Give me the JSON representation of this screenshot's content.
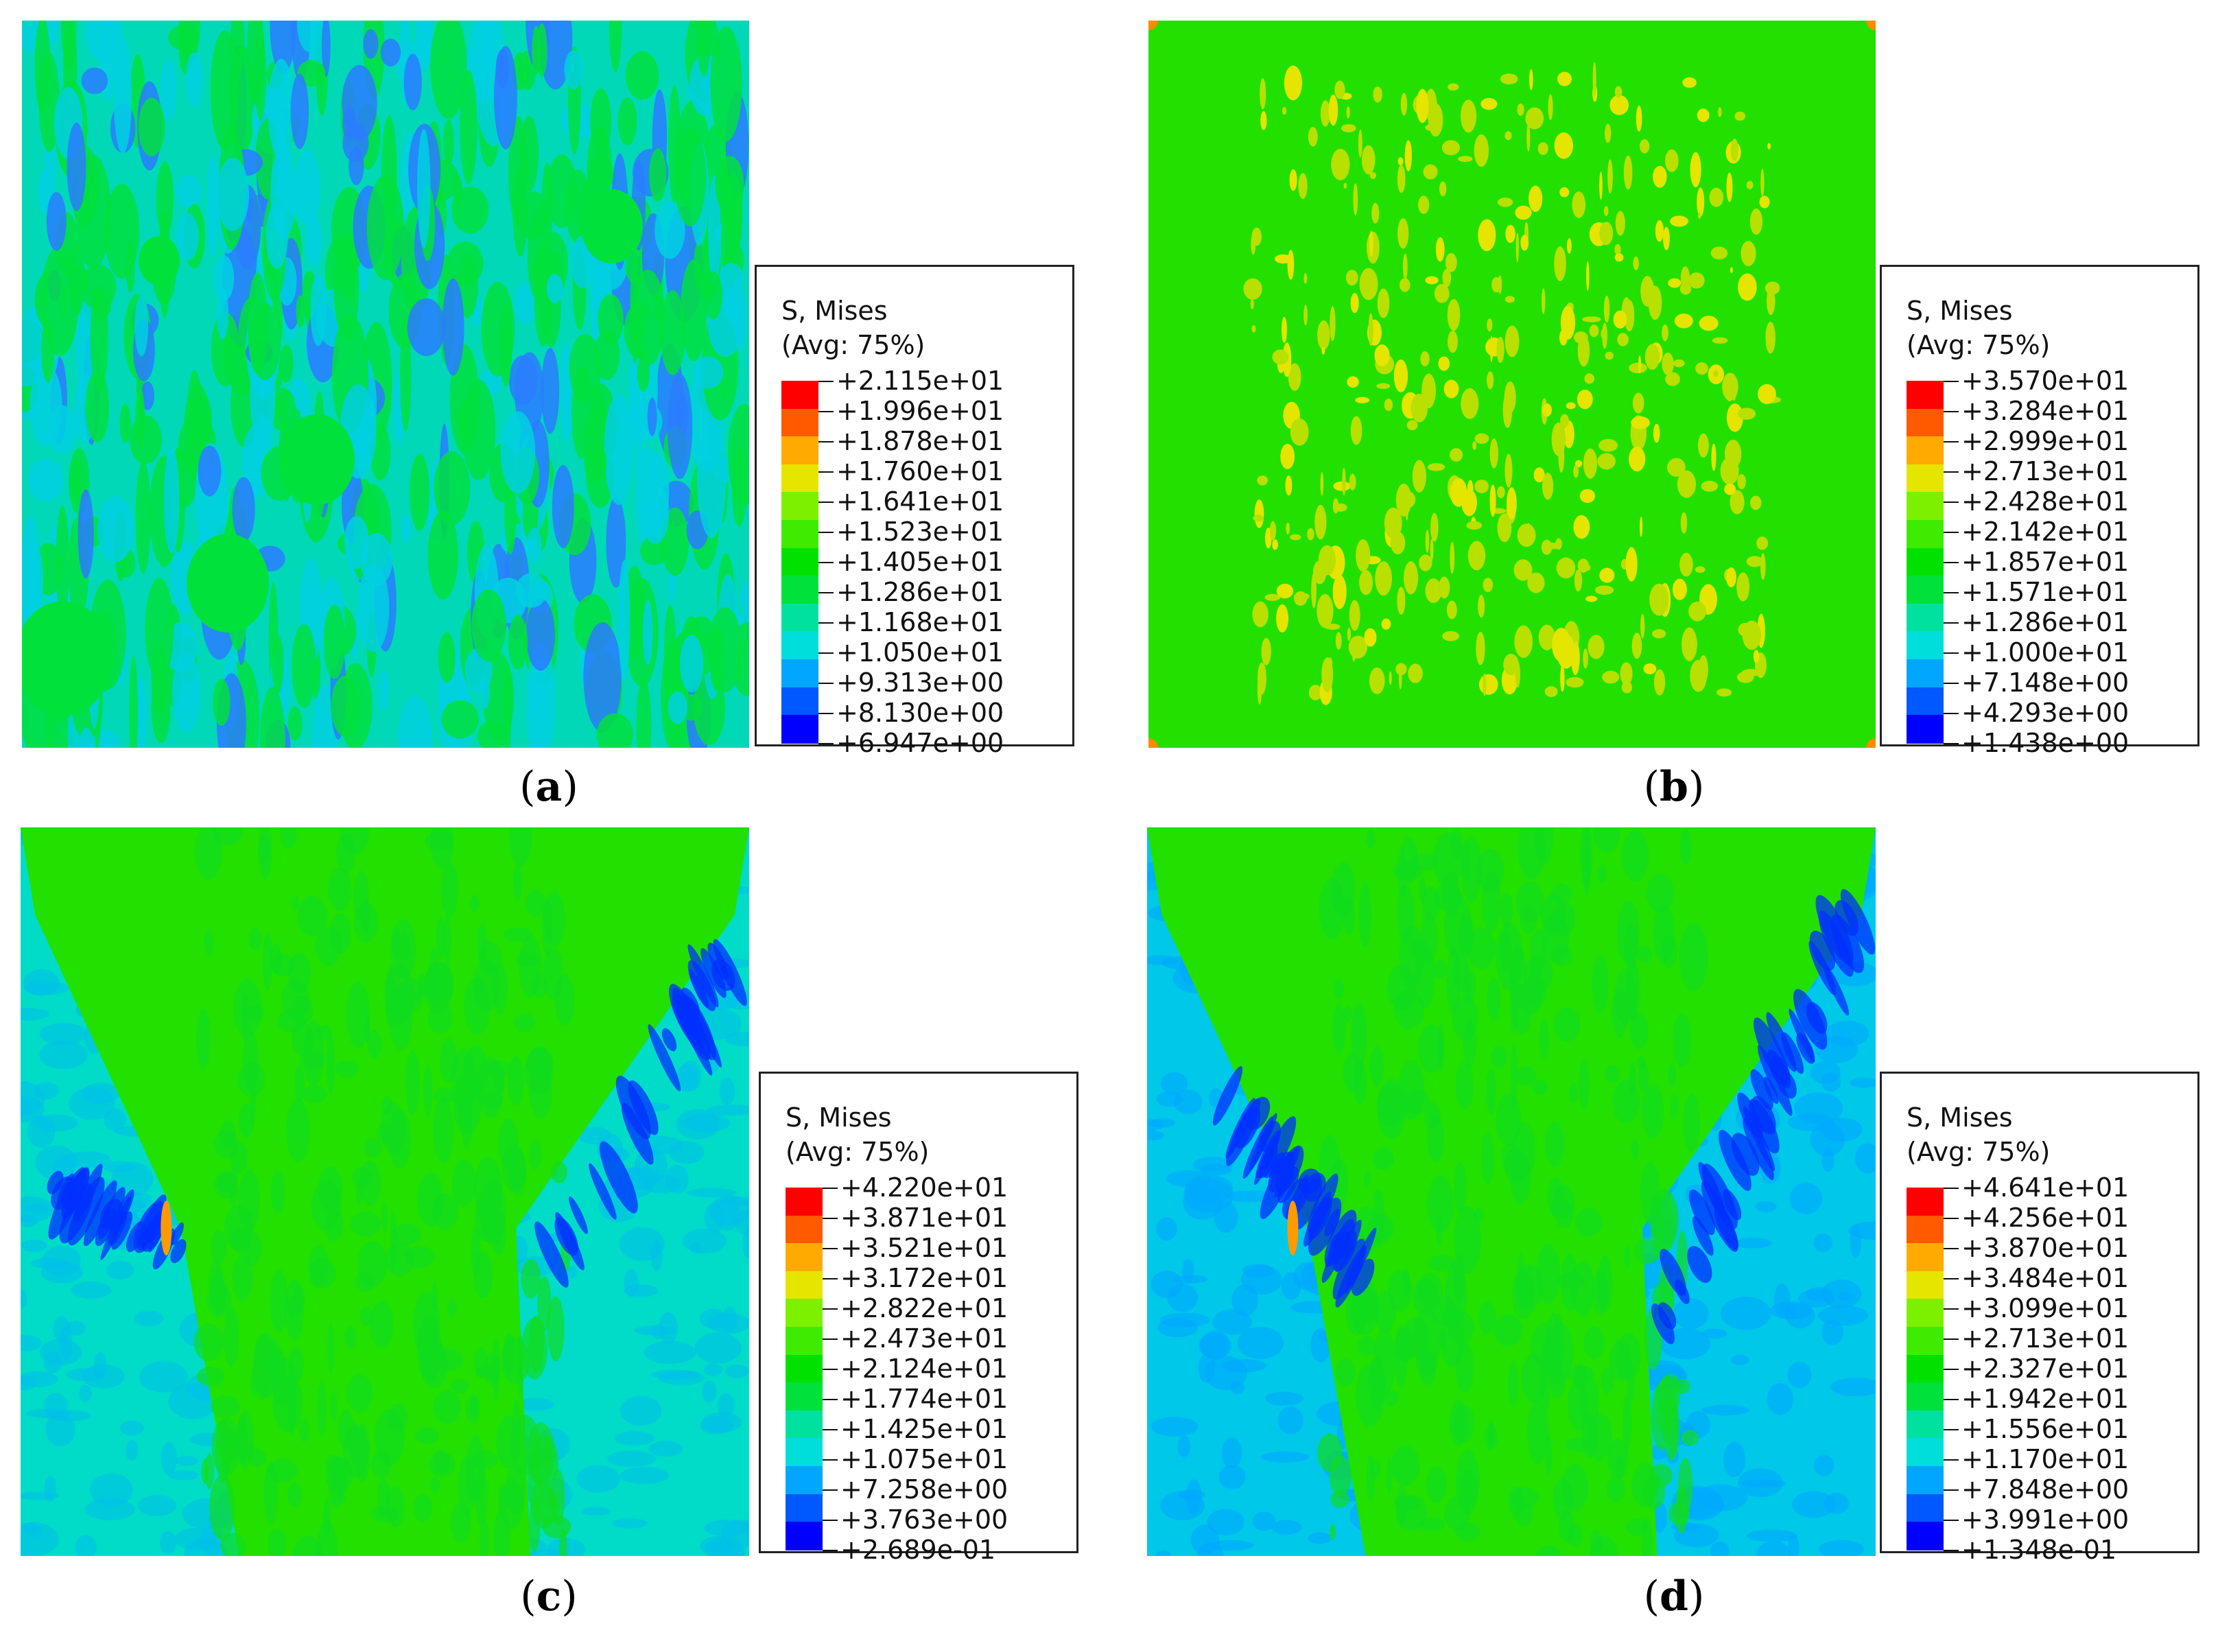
{
  "legend_colors": [
    "#ff0000",
    "#ff5a00",
    "#ffaa00",
    "#e5e500",
    "#7df000",
    "#3dec00",
    "#00e100",
    "#00e13c",
    "#00e1a0",
    "#00dedc",
    "#00a6ff",
    "#0058ff",
    "#0000ff"
  ],
  "panels": [
    {
      "id": "a",
      "caption_letter": "a",
      "legend": {
        "title": "S, Mises",
        "avg": "(Avg: 75%)",
        "values": [
          "+2.115e+01",
          "+1.996e+01",
          "+1.878e+01",
          "+1.760e+01",
          "+1.641e+01",
          "+1.523e+01",
          "+1.405e+01",
          "+1.286e+01",
          "+1.168e+01",
          "+1.050e+01",
          "+9.313e+00",
          "+8.130e+00",
          "+6.947e+00"
        ]
      },
      "base_color": "#00d8b8",
      "accent_color": "#00e13c",
      "pattern": "mottled"
    },
    {
      "id": "b",
      "caption_letter": "b",
      "legend": {
        "title": "S, Mises",
        "avg": "(Avg: 75%)",
        "values": [
          "+3.570e+01",
          "+3.284e+01",
          "+2.999e+01",
          "+2.713e+01",
          "+2.428e+01",
          "+2.142e+01",
          "+1.857e+01",
          "+1.571e+01",
          "+1.286e+01",
          "+1.000e+01",
          "+7.148e+00",
          "+4.293e+00",
          "+1.438e+00"
        ]
      },
      "base_color": "#22e000",
      "accent_color": "#c8e000",
      "pattern": "spotted"
    },
    {
      "id": "c",
      "caption_letter": "c",
      "legend": {
        "title": "S, Mises",
        "avg": "(Avg: 75%)",
        "values": [
          "+4.220e+01",
          "+3.871e+01",
          "+3.521e+01",
          "+3.172e+01",
          "+2.822e+01",
          "+2.473e+01",
          "+2.124e+01",
          "+1.774e+01",
          "+1.425e+01",
          "+1.075e+01",
          "+7.258e+00",
          "+3.763e+00",
          "+2.689e-01"
        ]
      },
      "base_color": "#00dcc8",
      "accent_color": "#22e000",
      "pattern": "hourglass"
    },
    {
      "id": "d",
      "caption_letter": "d",
      "legend": {
        "title": "S, Mises",
        "avg": "(Avg: 75%)",
        "values": [
          "+4.641e+01",
          "+4.256e+01",
          "+3.870e+01",
          "+3.484e+01",
          "+3.099e+01",
          "+2.713e+01",
          "+2.327e+01",
          "+1.942e+01",
          "+1.556e+01",
          "+1.170e+01",
          "+7.848e+00",
          "+3.991e+00",
          "+1.348e-01"
        ]
      },
      "base_color": "#00c8e8",
      "accent_color": "#22e000",
      "pattern": "hourglass-strong"
    }
  ]
}
